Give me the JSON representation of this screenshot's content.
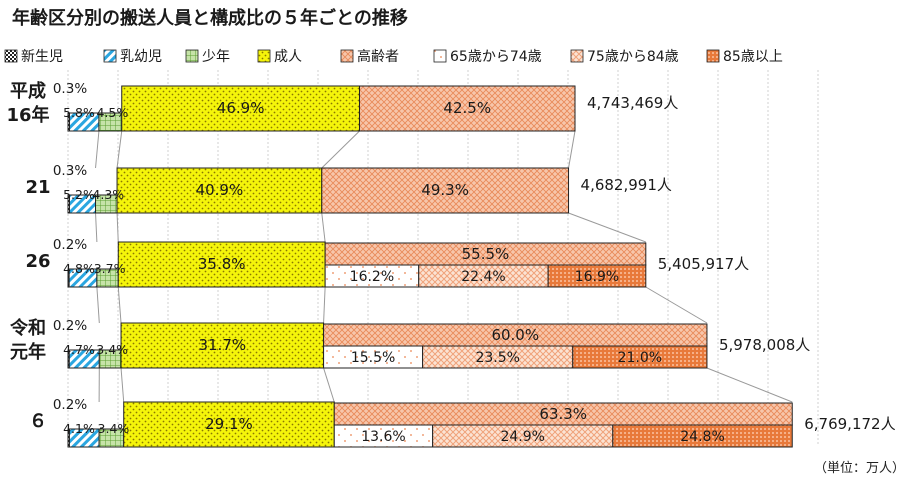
{
  "title": "年齢区分別の搬送人員と構成比の５年ごとの推移",
  "unit_note": "（単位：万人）",
  "chart_data": {
    "type": "bar",
    "orientation": "horizontal",
    "stacked": true,
    "title": "年齢区分別の搬送人員と構成比の５年ごとの推移",
    "legend": [
      {
        "key": "newborn",
        "label": "新生児",
        "color": "#222222",
        "pattern": "checker"
      },
      {
        "key": "infant",
        "label": "乳幼児",
        "color": "#2aa6e0",
        "pattern": "diagonal"
      },
      {
        "key": "youth",
        "label": "少年",
        "color": "#76b845",
        "pattern": "grid"
      },
      {
        "key": "adult",
        "label": "成人",
        "color": "#f5f50a",
        "pattern": "dots"
      },
      {
        "key": "elderly",
        "label": "高齢者",
        "color": "#f0a27a",
        "pattern": "cross"
      },
      {
        "key": "age65_74",
        "label": "65歳から74歳",
        "color": "#f4b08a",
        "pattern": "sparse"
      },
      {
        "key": "age75_84",
        "label": "75歳から84歳",
        "color": "#f0a27a",
        "pattern": "diamond"
      },
      {
        "key": "age85_plus",
        "label": "85歳以上",
        "color": "#e8793a",
        "pattern": "dense"
      }
    ],
    "categories": [
      {
        "label": "平成\n16年",
        "total": "4,743,469人",
        "total_value": 4743469,
        "shares": {
          "newborn": 0.3,
          "infant": 5.8,
          "youth": 4.5,
          "adult": 46.9,
          "elderly": 42.5
        },
        "labels": {
          "newborn": "0.3%",
          "infant": "5.8%",
          "youth": "4.5%",
          "adult": "46.9%",
          "elderly": "42.5%"
        },
        "elderly_breakdown": null
      },
      {
        "label": "21",
        "total": "4,682,991人",
        "total_value": 4682991,
        "shares": {
          "newborn": 0.3,
          "infant": 5.2,
          "youth": 4.3,
          "adult": 40.9,
          "elderly": 49.3
        },
        "labels": {
          "newborn": "0.3%",
          "infant": "5.2%",
          "youth": "4.3%",
          "adult": "40.9%",
          "elderly": "49.3%"
        },
        "elderly_breakdown": null
      },
      {
        "label": "26",
        "total": "5,405,917人",
        "total_value": 5405917,
        "shares": {
          "newborn": 0.2,
          "infant": 4.8,
          "youth": 3.7,
          "adult": 35.8,
          "elderly": 55.5
        },
        "labels": {
          "newborn": "0.2%",
          "infant": "4.8%",
          "youth": "3.7%",
          "adult": "35.8%",
          "elderly": "55.5%"
        },
        "elderly_breakdown": {
          "age65_74": 16.2,
          "age75_84": 22.4,
          "age85_plus": 16.9
        },
        "elderly_breakdown_labels": {
          "age65_74": "16.2%",
          "age75_84": "22.4%",
          "age85_plus": "16.9%"
        }
      },
      {
        "label": "令和\n元年",
        "total": "5,978,008人",
        "total_value": 5978008,
        "shares": {
          "newborn": 0.2,
          "infant": 4.7,
          "youth": 3.4,
          "adult": 31.7,
          "elderly": 60.0
        },
        "labels": {
          "newborn": "0.2%",
          "infant": "4.7%",
          "youth": "3.4%",
          "adult": "31.7%",
          "elderly": "60.0%"
        },
        "elderly_breakdown": {
          "age65_74": 15.5,
          "age75_84": 23.5,
          "age85_plus": 21.0
        },
        "elderly_breakdown_labels": {
          "age65_74": "15.5%",
          "age75_84": "23.5%",
          "age85_plus": "21.0%"
        }
      },
      {
        "label": "６",
        "total": "6,769,172人",
        "total_value": 6769172,
        "shares": {
          "newborn": 0.2,
          "infant": 4.1,
          "youth": 3.4,
          "adult": 29.1,
          "elderly": 63.3
        },
        "labels": {
          "newborn": "0.2%",
          "infant": "4.1%",
          "youth": "3.4%",
          "adult": "29.1%",
          "elderly": "63.3%"
        },
        "elderly_breakdown": {
          "age65_74": 13.6,
          "age75_84": 24.9,
          "age85_plus": 24.8
        },
        "elderly_breakdown_labels": {
          "age65_74": "13.6%",
          "age75_84": "24.9%",
          "age85_plus": "24.8%"
        }
      }
    ],
    "xlabel": "",
    "ylabel": "",
    "note": "bar length proportional to total transported persons"
  }
}
